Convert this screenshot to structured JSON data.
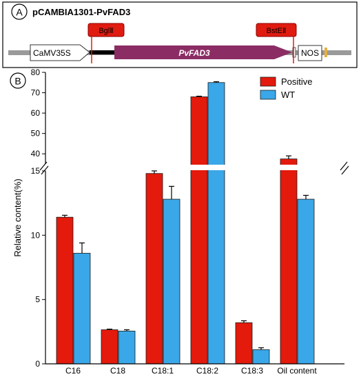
{
  "panel_a": {
    "label": "A",
    "title": "pCAMBIA1301-PvFAD3",
    "promoter": "CaMV35S",
    "gene": "PvFAD3",
    "terminator": "NOS",
    "site1": "BglⅡ",
    "site2": "BstEⅡ"
  },
  "panel_b": {
    "label": "B"
  },
  "colors": {
    "positive": "#e31a0c",
    "wt": "#3aa7e8",
    "gene_arrow": "#8b2d64",
    "site_box": "#e01b10"
  },
  "chart_data": {
    "type": "bar",
    "ylabel": "Relative content(%)",
    "categories": [
      "C16",
      "C18",
      "C18:1",
      "C18:2",
      "C18:3",
      "Oil content"
    ],
    "series": [
      {
        "name": "Positive",
        "values": [
          11.4,
          2.65,
          14.8,
          68.0,
          3.2,
          37.5
        ],
        "errors": [
          0.15,
          0.05,
          0.2,
          0.3,
          0.15,
          1.5
        ]
      },
      {
        "name": "WT",
        "values": [
          8.6,
          2.55,
          12.8,
          75.0,
          1.1,
          12.8
        ],
        "errors": [
          0.8,
          0.1,
          1.0,
          0.4,
          0.15,
          0.3
        ]
      }
    ],
    "axis_lower": {
      "range": [
        0,
        15
      ],
      "ticks": [
        0,
        5,
        10,
        15
      ]
    },
    "axis_upper": {
      "range": [
        35,
        80
      ],
      "ticks": [
        40,
        50,
        60,
        70,
        80
      ]
    },
    "axis_break": true,
    "significance": [
      {
        "category": "C16",
        "mark": "*"
      },
      {
        "category": "C18:2",
        "mark": "***"
      },
      {
        "category": "C18:3",
        "mark": "***"
      },
      {
        "category": "Oil content",
        "mark": "**"
      }
    ],
    "legend_position": "top-right",
    "grid": false
  }
}
